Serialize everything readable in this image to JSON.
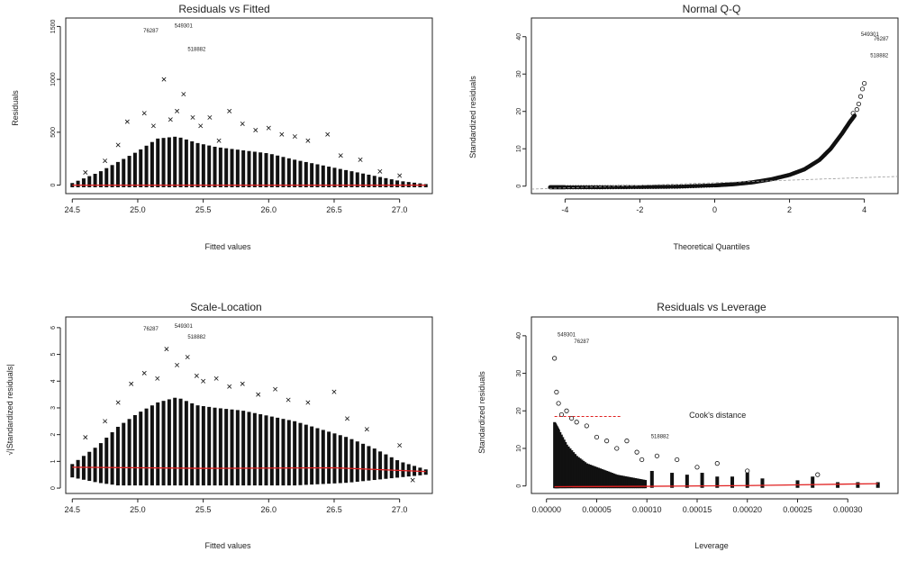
{
  "chart_data": [
    {
      "id": "rvf",
      "type": "scatter",
      "title": "Residuals vs Fitted",
      "xlabel": "Fitted values",
      "ylabel": "Residuals",
      "xlim": [
        24.45,
        27.25
      ],
      "ylim": [
        -80,
        1580
      ],
      "xticks": [
        24.5,
        25.0,
        25.5,
        26.0,
        26.5,
        27.0
      ],
      "xtick_labels": [
        "24.5",
        "25.0",
        "25.5",
        "26.0",
        "26.5",
        "27.0"
      ],
      "yticks": [
        0,
        500,
        1000,
        1500
      ],
      "ytick_labels": [
        "0",
        "500",
        "1000",
        "1500"
      ],
      "envelope": {
        "x": [
          24.5,
          24.7,
          24.85,
          25.0,
          25.15,
          25.3,
          25.45,
          25.6,
          25.8,
          26.0,
          26.2,
          26.4,
          26.6,
          26.8,
          27.0,
          27.2
        ],
        "top": [
          20,
          120,
          220,
          320,
          440,
          460,
          400,
          360,
          330,
          300,
          240,
          190,
          140,
          90,
          40,
          10
        ]
      },
      "scatter": {
        "x": [
          24.6,
          24.75,
          24.85,
          24.92,
          25.05,
          25.12,
          25.2,
          25.25,
          25.3,
          25.35,
          25.42,
          25.48,
          25.55,
          25.62,
          25.7,
          25.8,
          25.9,
          26.0,
          26.1,
          26.2,
          26.3,
          26.45,
          26.55,
          26.7,
          26.85,
          27.0
        ],
        "y": [
          120,
          230,
          380,
          600,
          680,
          560,
          1000,
          620,
          700,
          860,
          640,
          560,
          640,
          420,
          700,
          580,
          520,
          540,
          480,
          460,
          420,
          480,
          280,
          240,
          130,
          90
        ]
      },
      "smooth": {
        "x": [
          24.5,
          27.2
        ],
        "y": [
          0,
          0
        ]
      },
      "labels": [
        {
          "text": "549301",
          "x": 25.35,
          "y": 1490
        },
        {
          "text": "76287",
          "x": 25.1,
          "y": 1445
        },
        {
          "text": "518882",
          "x": 25.45,
          "y": 1270
        }
      ]
    },
    {
      "id": "qq",
      "type": "scatter",
      "title": "Normal Q-Q",
      "xlabel": "Theoretical Quantiles",
      "ylabel": "Standardized residuals",
      "xlim": [
        -4.9,
        4.9
      ],
      "ylim": [
        -2,
        45
      ],
      "xticks": [
        -4,
        -2,
        0,
        2,
        4
      ],
      "xtick_labels": [
        "-4",
        "-2",
        "0",
        "2",
        "4"
      ],
      "yticks": [
        0,
        10,
        20,
        30,
        40
      ],
      "ytick_labels": [
        "0",
        "10",
        "20",
        "30",
        "40"
      ],
      "curve": {
        "x": [
          -4.4,
          -4.0,
          -3.0,
          -2.0,
          -1.0,
          0.0,
          0.5,
          1.0,
          1.5,
          2.0,
          2.4,
          2.8,
          3.1,
          3.4,
          3.6,
          3.75
        ],
        "y": [
          -0.3,
          -0.3,
          -0.3,
          -0.25,
          -0.15,
          0.2,
          0.5,
          1.0,
          1.8,
          3.0,
          4.5,
          7.0,
          10.0,
          14.0,
          17.0,
          19.0
        ]
      },
      "tail": {
        "x": [
          3.7,
          3.8,
          3.85,
          3.9,
          3.95,
          4.0
        ],
        "y": [
          19.5,
          20.5,
          22.0,
          24.0,
          26.0,
          27.5
        ]
      },
      "reference": {
        "x": [
          -4.9,
          4.9
        ],
        "y": [
          -0.8,
          2.6
        ]
      },
      "labels": [
        {
          "text": "549301",
          "x": 4.15,
          "y": 40.2
        },
        {
          "text": "76287",
          "x": 4.45,
          "y": 39.0
        },
        {
          "text": "518882",
          "x": 4.4,
          "y": 34.5
        }
      ]
    },
    {
      "id": "sl",
      "type": "scatter",
      "title": "Scale-Location",
      "xlabel": "Fitted values",
      "ylabel": "√|Standardized residuals|",
      "xlim": [
        24.45,
        27.25
      ],
      "ylim": [
        -0.2,
        6.4
      ],
      "xticks": [
        24.5,
        25.0,
        25.5,
        26.0,
        26.5,
        27.0
      ],
      "xtick_labels": [
        "24.5",
        "25.0",
        "25.5",
        "26.0",
        "26.5",
        "27.0"
      ],
      "yticks": [
        0,
        1,
        2,
        3,
        4,
        5,
        6
      ],
      "ytick_labels": [
        "0",
        "1",
        "2",
        "3",
        "4",
        "5",
        "6"
      ],
      "envelope": {
        "x": [
          24.5,
          24.7,
          24.85,
          25.0,
          25.15,
          25.3,
          25.45,
          25.6,
          25.8,
          26.0,
          26.2,
          26.4,
          26.6,
          26.8,
          27.0,
          27.2
        ],
        "top": [
          0.9,
          1.6,
          2.3,
          2.8,
          3.2,
          3.4,
          3.1,
          3.0,
          2.9,
          2.7,
          2.5,
          2.2,
          1.9,
          1.5,
          1.0,
          0.7
        ],
        "bottom": [
          0.4,
          0.2,
          0.1,
          0.1,
          0.1,
          0.1,
          0.1,
          0.1,
          0.1,
          0.1,
          0.1,
          0.15,
          0.2,
          0.3,
          0.4,
          0.5
        ]
      },
      "scatter": {
        "x": [
          24.6,
          24.75,
          24.85,
          24.95,
          25.05,
          25.15,
          25.22,
          25.3,
          25.38,
          25.45,
          25.5,
          25.6,
          25.7,
          25.8,
          25.92,
          26.05,
          26.15,
          26.3,
          26.5,
          26.6,
          26.75,
          27.0,
          27.1
        ],
        "y": [
          1.9,
          2.5,
          3.2,
          3.9,
          4.3,
          4.1,
          5.2,
          4.6,
          4.9,
          4.2,
          4.0,
          4.1,
          3.8,
          3.9,
          3.5,
          3.7,
          3.3,
          3.2,
          3.6,
          2.6,
          2.2,
          1.6,
          0.3
        ]
      },
      "smooth": {
        "x": [
          24.5,
          25.5,
          26.5,
          27.2
        ],
        "y": [
          0.78,
          0.74,
          0.76,
          0.62
        ]
      },
      "labels": [
        {
          "text": "549301",
          "x": 25.35,
          "y": 6.0
        },
        {
          "text": "76287",
          "x": 25.1,
          "y": 5.9
        },
        {
          "text": "518882",
          "x": 25.45,
          "y": 5.6
        }
      ]
    },
    {
      "id": "rvl",
      "type": "scatter",
      "title": "Residuals vs Leverage",
      "xlabel": "Leverage",
      "ylabel": "Standardized residuals",
      "xlim": [
        -1.5e-05,
        0.00035
      ],
      "ylim": [
        -2,
        45
      ],
      "xticks": [
        0.0,
        5e-05,
        0.0001,
        0.00015,
        0.0002,
        0.00025,
        0.0003
      ],
      "xtick_labels": [
        "0.00000",
        "0.00005",
        "0.00010",
        "0.00015",
        "0.00020",
        "0.00025",
        "0.00030"
      ],
      "yticks": [
        0,
        10,
        20,
        30,
        40
      ],
      "ytick_labels": [
        "0",
        "10",
        "20",
        "30",
        "40"
      ],
      "dense": {
        "x": [
          8e-06,
          1.2e-05,
          2e-05,
          3e-05,
          4e-05,
          5e-05,
          6e-05,
          7e-05,
          8e-05,
          9e-05,
          0.0001
        ],
        "top": [
          17,
          15,
          11,
          8,
          6,
          5,
          4,
          3,
          2.5,
          2,
          1.5
        ]
      },
      "columns": {
        "x": [
          0.000105,
          0.000125,
          0.00014,
          0.000155,
          0.00017,
          0.000185,
          0.0002,
          0.000215,
          0.00025,
          0.000265,
          0.00029,
          0.00031,
          0.00033
        ],
        "top": [
          4.0,
          3.5,
          3.0,
          3.5,
          2.5,
          2.5,
          3.5,
          2.0,
          1.5,
          2.5,
          1.0,
          1.0,
          1.0
        ]
      },
      "scatter": {
        "x": [
          8e-06,
          1e-05,
          1.2e-05,
          1.5e-05,
          2e-05,
          2.5e-05,
          3e-05,
          4e-05,
          5e-05,
          6e-05,
          7e-05,
          8e-05,
          9e-05,
          9.5e-05,
          0.00011,
          0.00013,
          0.00015,
          0.00017,
          0.0002,
          0.00027
        ],
        "y": [
          34,
          25,
          22,
          19,
          20,
          18,
          17,
          16,
          13,
          12,
          10,
          12,
          9,
          7,
          8,
          7,
          5,
          6,
          4,
          3
        ]
      },
      "smooth": {
        "x": [
          8e-06,
          0.0001,
          0.0002,
          0.0003,
          0.00033
        ],
        "y": [
          -0.2,
          -0.1,
          0.1,
          0.5,
          0.6
        ]
      },
      "cook": {
        "x": [
          8e-06,
          7.5e-05
        ],
        "y": [
          18.5,
          18.5
        ]
      },
      "annotation": {
        "text": "Cook's distance",
        "x": 0.000142,
        "y": 18.2
      },
      "labels": [
        {
          "text": "549301",
          "x": 2e-05,
          "y": 39.8
        },
        {
          "text": "76287",
          "x": 3.5e-05,
          "y": 38.0
        },
        {
          "text": "518882",
          "x": 0.000113,
          "y": 12.8
        }
      ]
    }
  ]
}
